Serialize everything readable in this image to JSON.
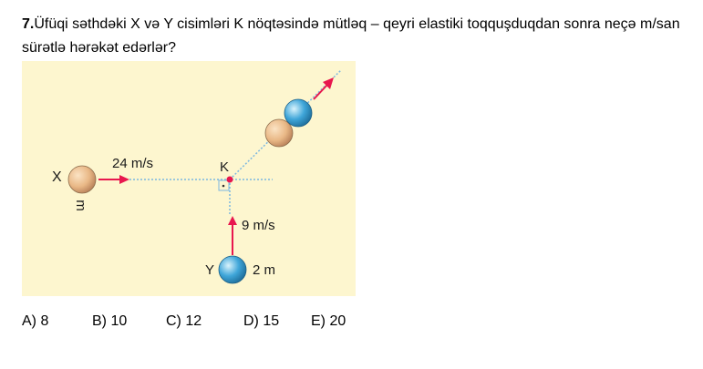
{
  "question": {
    "number": "7.",
    "text": "Üfüqi səthdəki X və Y cisimləri K nöqtəsində mütləq – qeyri elastiki toqquşduqdan sonra neçə m/san sürətlə hərəkət edərlər?"
  },
  "figure": {
    "label_x": "X",
    "label_m": "m",
    "label_speed_x": "24 m/s",
    "label_k": "K",
    "label_speed_y": "9 m/s",
    "label_y": "Y",
    "label_2m": "2 m",
    "colors": {
      "background": "#fdf6cf",
      "arrow": "#e8174e",
      "dotted": "#7bb7e0",
      "ball_x": "#e9b886",
      "ball_y": "#3fa6d9"
    }
  },
  "answers": [
    {
      "label": "A) 8"
    },
    {
      "label": "B) 10"
    },
    {
      "label": "C) 12"
    },
    {
      "label": "D) 15"
    },
    {
      "label": "E) 20"
    }
  ]
}
